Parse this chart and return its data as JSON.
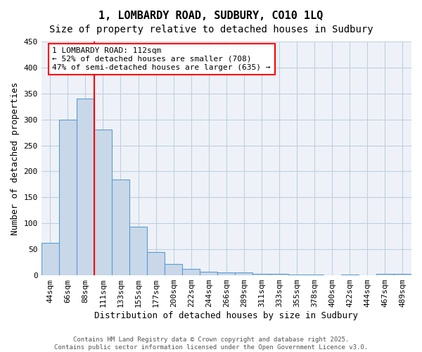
{
  "title_line1": "1, LOMBARDY ROAD, SUDBURY, CO10 1LQ",
  "title_line2": "Size of property relative to detached houses in Sudbury",
  "xlabel": "Distribution of detached houses by size in Sudbury",
  "ylabel": "Number of detached properties",
  "categories": [
    "44sqm",
    "66sqm",
    "88sqm",
    "111sqm",
    "133sqm",
    "155sqm",
    "177sqm",
    "200sqm",
    "222sqm",
    "244sqm",
    "266sqm",
    "289sqm",
    "311sqm",
    "333sqm",
    "355sqm",
    "378sqm",
    "400sqm",
    "422sqm",
    "444sqm",
    "467sqm",
    "489sqm"
  ],
  "values": [
    62,
    300,
    340,
    280,
    185,
    93,
    45,
    22,
    12,
    7,
    5,
    5,
    3,
    3,
    2,
    1,
    0,
    1,
    0,
    3,
    3
  ],
  "bar_color": "#c8d8e8",
  "bar_edge_color": "#5b9bd5",
  "grid_color": "#c0cfe0",
  "background_color": "#eef2f8",
  "ylim": [
    0,
    450
  ],
  "yticks": [
    0,
    50,
    100,
    150,
    200,
    250,
    300,
    350,
    400,
    450
  ],
  "red_line_index": 3,
  "annotation_line1": "1 LOMBARDY ROAD: 112sqm",
  "annotation_line2": "← 52% of detached houses are smaller (708)",
  "annotation_line3": "47% of semi-detached houses are larger (635) →",
  "footnote1": "Contains HM Land Registry data © Crown copyright and database right 2025.",
  "footnote2": "Contains public sector information licensed under the Open Government Licence v3.0.",
  "title_fontsize": 11,
  "subtitle_fontsize": 10,
  "tick_fontsize": 8,
  "label_fontsize": 9,
  "annotation_fontsize": 8
}
